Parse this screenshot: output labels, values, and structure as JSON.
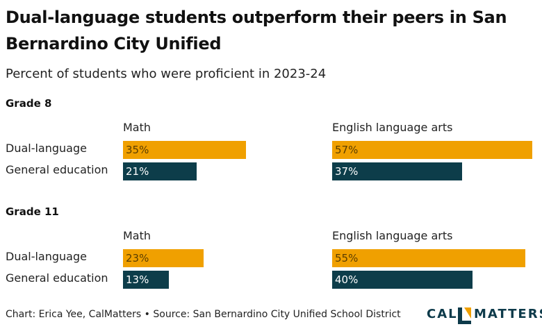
{
  "title": "Dual-language students outperform their peers in San Bernardino City Unified",
  "subtitle": "Percent of students who were proficient in 2023-24",
  "footer": "Chart: Erica Yee, CalMatters • Source: San Bernardino City Unified School District",
  "logo": {
    "part1": "CAL",
    "part2": "MATTERS",
    "icon": "calmatters-logo-icon"
  },
  "colors": {
    "dual": "#F0A000",
    "general": "#0D3D4A",
    "dual_text": "#5a3d00",
    "general_text": "#ffffff"
  },
  "chart_data": {
    "type": "bar",
    "orientation": "horizontal",
    "xlim": [
      0,
      60
    ],
    "series_names": [
      "Dual-language",
      "General education"
    ],
    "groups": [
      {
        "label": "Grade 8",
        "panels": [
          {
            "label": "Math",
            "values": [
              35,
              21
            ],
            "labels": [
              "35%",
              "21%"
            ]
          },
          {
            "label": "English language arts",
            "values": [
              57,
              37
            ],
            "labels": [
              "57%",
              "37%"
            ]
          }
        ]
      },
      {
        "label": "Grade 11",
        "panels": [
          {
            "label": "Math",
            "values": [
              23,
              13
            ],
            "labels": [
              "23%",
              "13%"
            ]
          },
          {
            "label": "English language arts",
            "values": [
              55,
              40
            ],
            "labels": [
              "55%",
              "40%"
            ]
          }
        ]
      }
    ]
  }
}
